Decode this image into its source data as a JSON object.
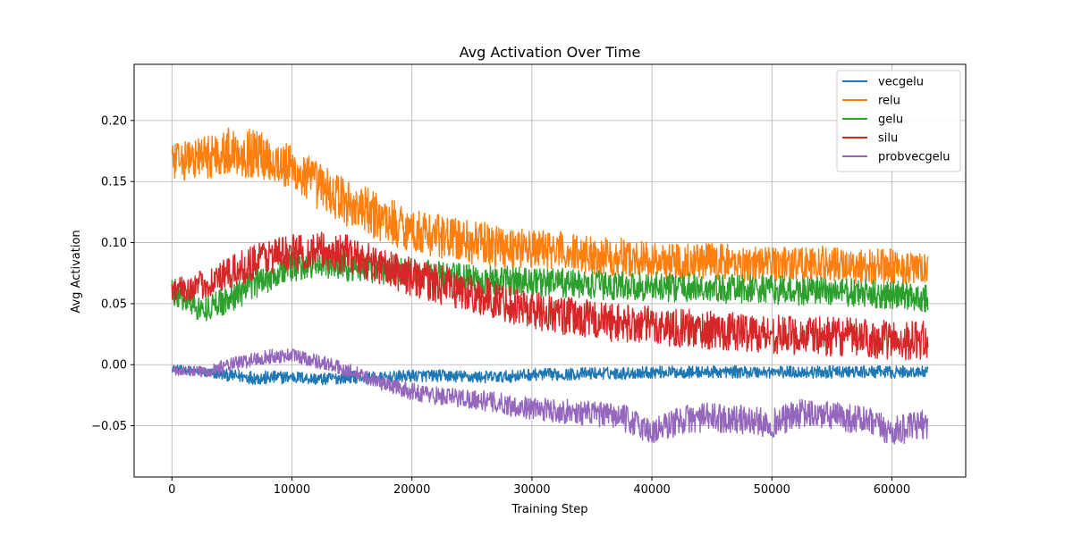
{
  "chart_data": {
    "type": "line",
    "title": "Avg Activation Over Time",
    "xlabel": "Training Step",
    "ylabel": "Avg Activation",
    "xlim": [
      -3150,
      66150
    ],
    "ylim": [
      -0.092,
      0.246
    ],
    "xticks": [
      0,
      10000,
      20000,
      30000,
      40000,
      50000,
      60000
    ],
    "xtick_labels": [
      "0",
      "10000",
      "20000",
      "30000",
      "40000",
      "50000",
      "60000"
    ],
    "yticks": [
      -0.05,
      0.0,
      0.05,
      0.1,
      0.15,
      0.2
    ],
    "ytick_labels": [
      "−0.05",
      "0.00",
      "0.05",
      "0.10",
      "0.15",
      "0.20"
    ],
    "grid": true,
    "legend_position": "top-right",
    "series": [
      {
        "name": "vecgelu",
        "color": "#1f77b4",
        "x": [
          0,
          2500,
          5000,
          7500,
          10000,
          12500,
          15000,
          17500,
          20000,
          22500,
          25000,
          27500,
          30000,
          32500,
          35000,
          37500,
          40000,
          42500,
          45000,
          47500,
          50000,
          52500,
          55000,
          57500,
          60000,
          63000
        ],
        "y": [
          -0.003,
          -0.006,
          -0.009,
          -0.011,
          -0.01,
          -0.012,
          -0.01,
          -0.011,
          -0.009,
          -0.009,
          -0.01,
          -0.01,
          -0.008,
          -0.008,
          -0.007,
          -0.007,
          -0.006,
          -0.006,
          -0.006,
          -0.006,
          -0.006,
          -0.006,
          -0.006,
          -0.006,
          -0.006,
          -0.006
        ],
        "spread": [
          0.003,
          0.004,
          0.005,
          0.006,
          0.005,
          0.005,
          0.005,
          0.005,
          0.005,
          0.005,
          0.005,
          0.005,
          0.005,
          0.005,
          0.005,
          0.005,
          0.005,
          0.005,
          0.005,
          0.005,
          0.005,
          0.005,
          0.005,
          0.005,
          0.005,
          0.005
        ]
      },
      {
        "name": "relu",
        "color": "#ff7f0e",
        "x": [
          0,
          2500,
          5000,
          7500,
          10000,
          12500,
          15000,
          17500,
          20000,
          22500,
          25000,
          27500,
          30000,
          32500,
          35000,
          37500,
          40000,
          42500,
          45000,
          47500,
          50000,
          52500,
          55000,
          57500,
          60000,
          63000
        ],
        "y": [
          0.165,
          0.17,
          0.175,
          0.172,
          0.16,
          0.145,
          0.13,
          0.12,
          0.11,
          0.105,
          0.1,
          0.097,
          0.095,
          0.093,
          0.09,
          0.088,
          0.085,
          0.085,
          0.085,
          0.083,
          0.083,
          0.083,
          0.082,
          0.081,
          0.08,
          0.078
        ],
        "spread": [
          0.015,
          0.018,
          0.02,
          0.02,
          0.02,
          0.02,
          0.02,
          0.02,
          0.018,
          0.018,
          0.018,
          0.018,
          0.016,
          0.016,
          0.016,
          0.016,
          0.015,
          0.015,
          0.015,
          0.015,
          0.015,
          0.015,
          0.015,
          0.015,
          0.015,
          0.012
        ]
      },
      {
        "name": "gelu",
        "color": "#2ca02c",
        "x": [
          0,
          2500,
          5000,
          7500,
          10000,
          12500,
          15000,
          17500,
          20000,
          22500,
          25000,
          27500,
          30000,
          32500,
          35000,
          37500,
          40000,
          42500,
          45000,
          47500,
          50000,
          52500,
          55000,
          57500,
          60000,
          63000
        ],
        "y": [
          0.06,
          0.045,
          0.055,
          0.07,
          0.08,
          0.082,
          0.08,
          0.078,
          0.075,
          0.073,
          0.07,
          0.069,
          0.068,
          0.067,
          0.065,
          0.065,
          0.064,
          0.063,
          0.062,
          0.062,
          0.061,
          0.06,
          0.06,
          0.058,
          0.057,
          0.055
        ],
        "spread": [
          0.012,
          0.01,
          0.012,
          0.013,
          0.012,
          0.012,
          0.012,
          0.012,
          0.012,
          0.012,
          0.012,
          0.012,
          0.012,
          0.012,
          0.012,
          0.012,
          0.012,
          0.012,
          0.012,
          0.012,
          0.012,
          0.012,
          0.012,
          0.012,
          0.012,
          0.012
        ]
      },
      {
        "name": "silu",
        "color": "#d62728",
        "x": [
          0,
          2500,
          5000,
          7500,
          10000,
          12500,
          15000,
          17500,
          20000,
          22500,
          25000,
          27500,
          30000,
          32500,
          35000,
          37500,
          40000,
          42500,
          45000,
          47500,
          50000,
          52500,
          55000,
          57500,
          60000,
          63000
        ],
        "y": [
          0.06,
          0.065,
          0.075,
          0.088,
          0.092,
          0.093,
          0.09,
          0.08,
          0.072,
          0.065,
          0.058,
          0.052,
          0.045,
          0.04,
          0.037,
          0.034,
          0.032,
          0.03,
          0.028,
          0.027,
          0.025,
          0.024,
          0.023,
          0.022,
          0.02,
          0.02
        ],
        "spread": [
          0.01,
          0.012,
          0.014,
          0.015,
          0.015,
          0.016,
          0.016,
          0.016,
          0.016,
          0.016,
          0.016,
          0.016,
          0.016,
          0.016,
          0.016,
          0.016,
          0.016,
          0.016,
          0.016,
          0.016,
          0.016,
          0.016,
          0.016,
          0.016,
          0.016,
          0.016
        ]
      },
      {
        "name": "probvecgelu",
        "color": "#9467bd",
        "x": [
          0,
          2500,
          5000,
          7500,
          10000,
          12500,
          15000,
          17500,
          20000,
          22500,
          25000,
          27500,
          30000,
          32500,
          35000,
          37500,
          40000,
          42500,
          45000,
          47500,
          50000,
          52500,
          55000,
          57500,
          60000,
          63000
        ],
        "y": [
          -0.005,
          -0.006,
          0.0,
          0.006,
          0.008,
          0.002,
          -0.006,
          -0.015,
          -0.022,
          -0.026,
          -0.028,
          -0.032,
          -0.036,
          -0.038,
          -0.04,
          -0.043,
          -0.055,
          -0.045,
          -0.043,
          -0.045,
          -0.048,
          -0.04,
          -0.042,
          -0.045,
          -0.055,
          -0.048
        ],
        "spread": [
          0.004,
          0.005,
          0.006,
          0.006,
          0.006,
          0.006,
          0.006,
          0.006,
          0.007,
          0.008,
          0.008,
          0.009,
          0.009,
          0.01,
          0.01,
          0.011,
          0.012,
          0.012,
          0.012,
          0.012,
          0.012,
          0.012,
          0.012,
          0.012,
          0.012,
          0.012
        ]
      }
    ]
  }
}
